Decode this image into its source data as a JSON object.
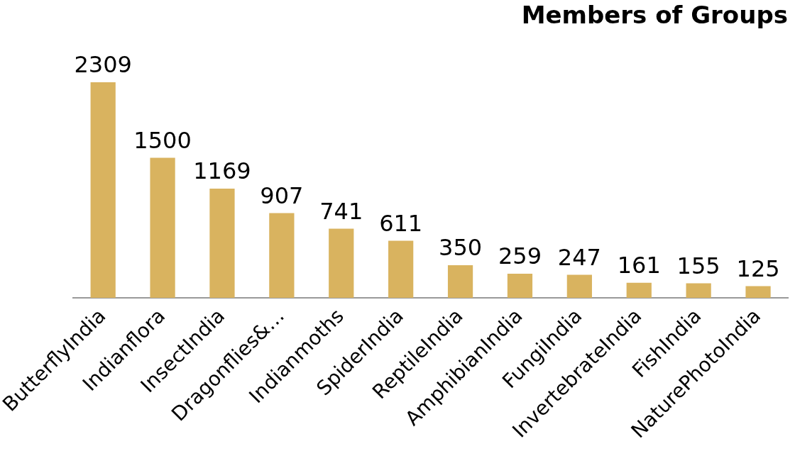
{
  "chart_data": {
    "type": "bar",
    "title": "Members of Groups",
    "categories": [
      "ButterflyIndia",
      "Indianflora",
      "InsectIndia",
      "Dragonflies&…",
      "Indianmoths",
      "SpiderIndia",
      "ReptileIndia",
      "AmphibianIndia",
      "FungiIndia",
      "InvertebrateIndia",
      "FishIndia",
      "NaturePhotoIndia"
    ],
    "values": [
      2309,
      1500,
      1169,
      907,
      741,
      611,
      350,
      259,
      247,
      161,
      155,
      125
    ],
    "color": "#d9b35f",
    "data_labels": true,
    "tick_labels": "x",
    "grid": false,
    "legend": false
  }
}
